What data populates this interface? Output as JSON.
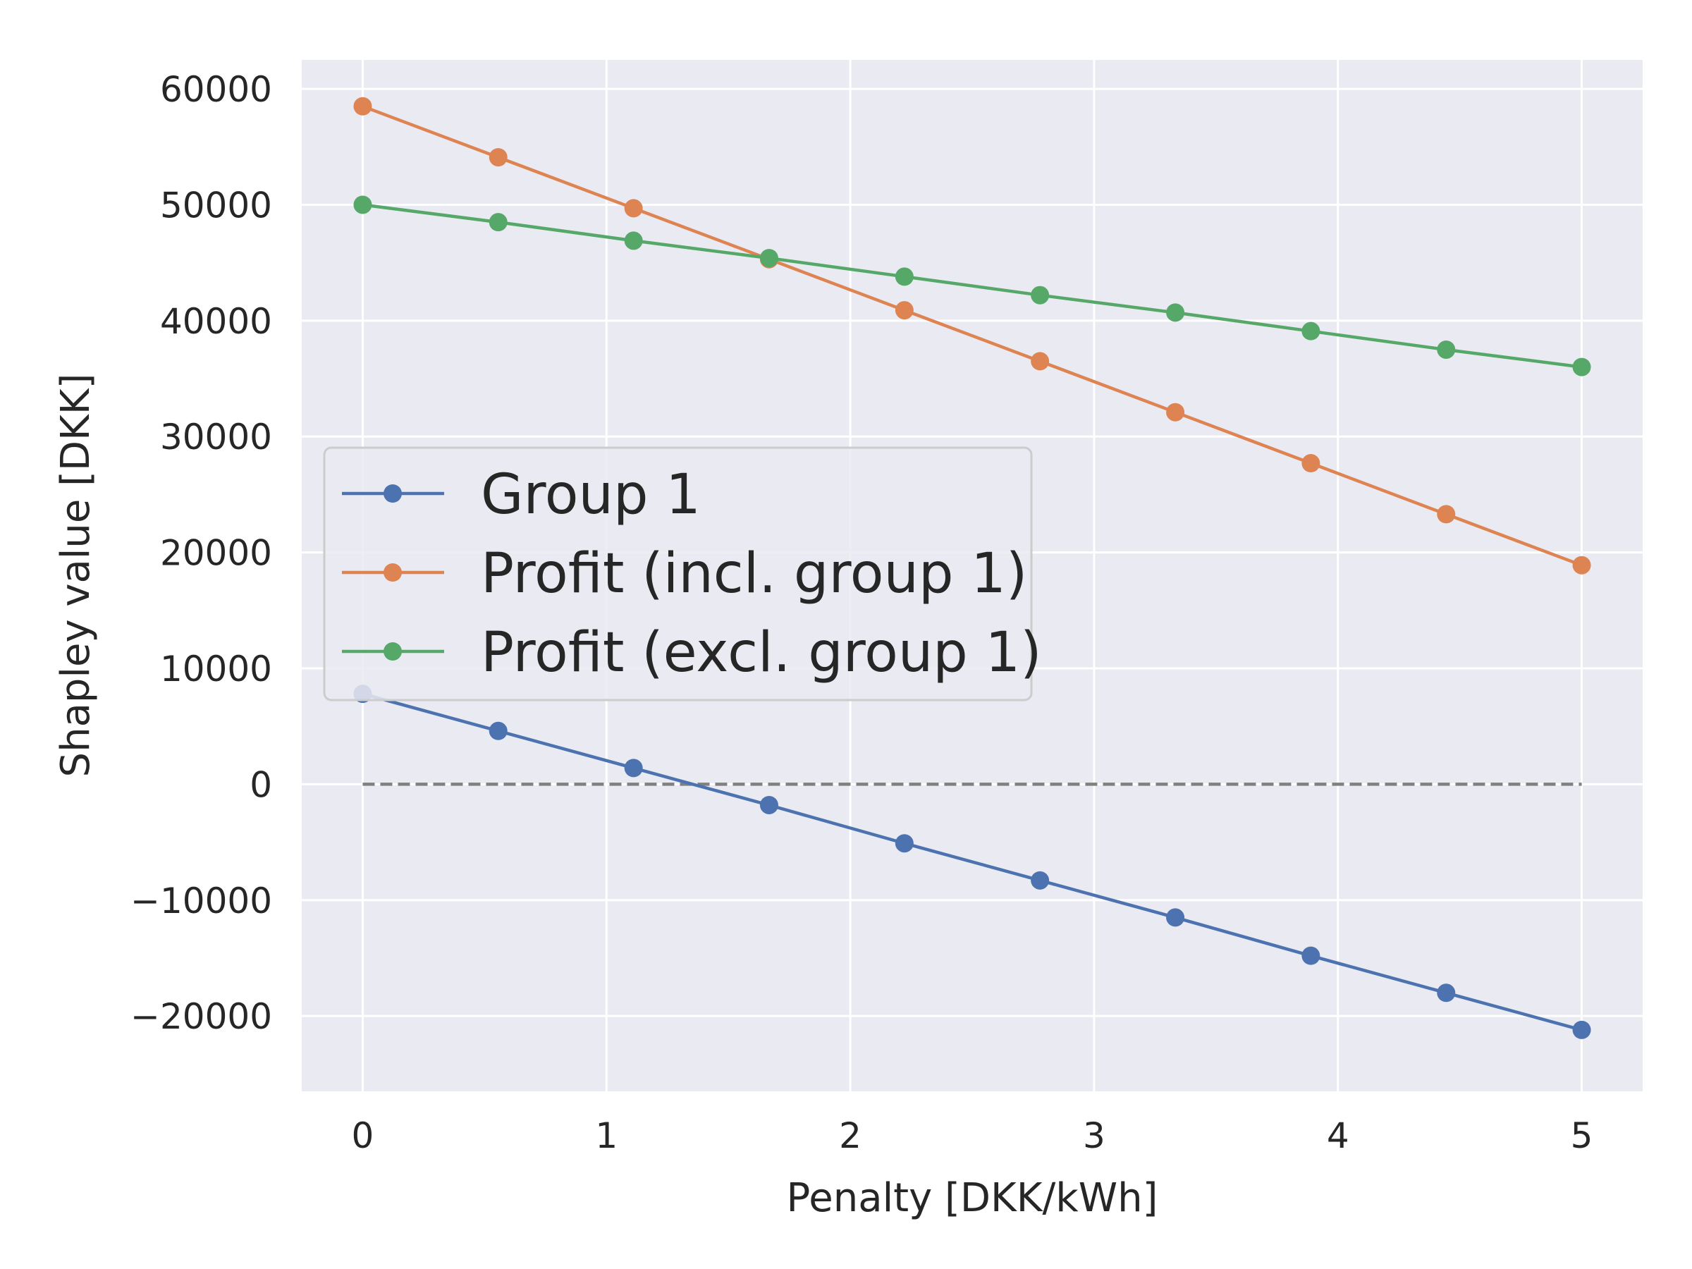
{
  "chart_data": {
    "type": "line",
    "xlabel": "Penalty [DKK/kWh]",
    "ylabel": "Shapley value [DKK]",
    "xlim": [
      -0.25,
      5.25
    ],
    "ylim": [
      -26500,
      62500
    ],
    "xticks": [
      0,
      1,
      2,
      3,
      4,
      5
    ],
    "yticks": [
      -20000,
      -10000,
      0,
      10000,
      20000,
      30000,
      40000,
      50000,
      60000
    ],
    "ytick_labels": [
      "−20000",
      "−10000",
      "0",
      "10000",
      "20000",
      "30000",
      "40000",
      "50000",
      "60000"
    ],
    "grid": true,
    "background": "#eaeaf2",
    "legend_position": "center-left",
    "x": [
      0,
      0.556,
      1.111,
      1.667,
      2.222,
      2.778,
      3.333,
      3.889,
      4.444,
      5.0
    ],
    "series": [
      {
        "name": "Group 1",
        "color": "#4c72b0",
        "values": [
          7800,
          4600,
          1400,
          -1800,
          -5100,
          -8300,
          -11500,
          -14800,
          -18000,
          -21200
        ]
      },
      {
        "name": "Profit (incl. group 1)",
        "color": "#dd8452",
        "values": [
          58500,
          54100,
          49700,
          45300,
          40900,
          36500,
          32100,
          27700,
          23300,
          18900
        ]
      },
      {
        "name": "Profit (excl. group 1)",
        "color": "#55a868",
        "values": [
          50000,
          48500,
          46900,
          45400,
          43800,
          42200,
          40700,
          39100,
          37500,
          36000
        ]
      }
    ],
    "reference_line": {
      "y": 0,
      "x_range": [
        0,
        5
      ],
      "color": "#808080",
      "style": "dashed"
    }
  }
}
